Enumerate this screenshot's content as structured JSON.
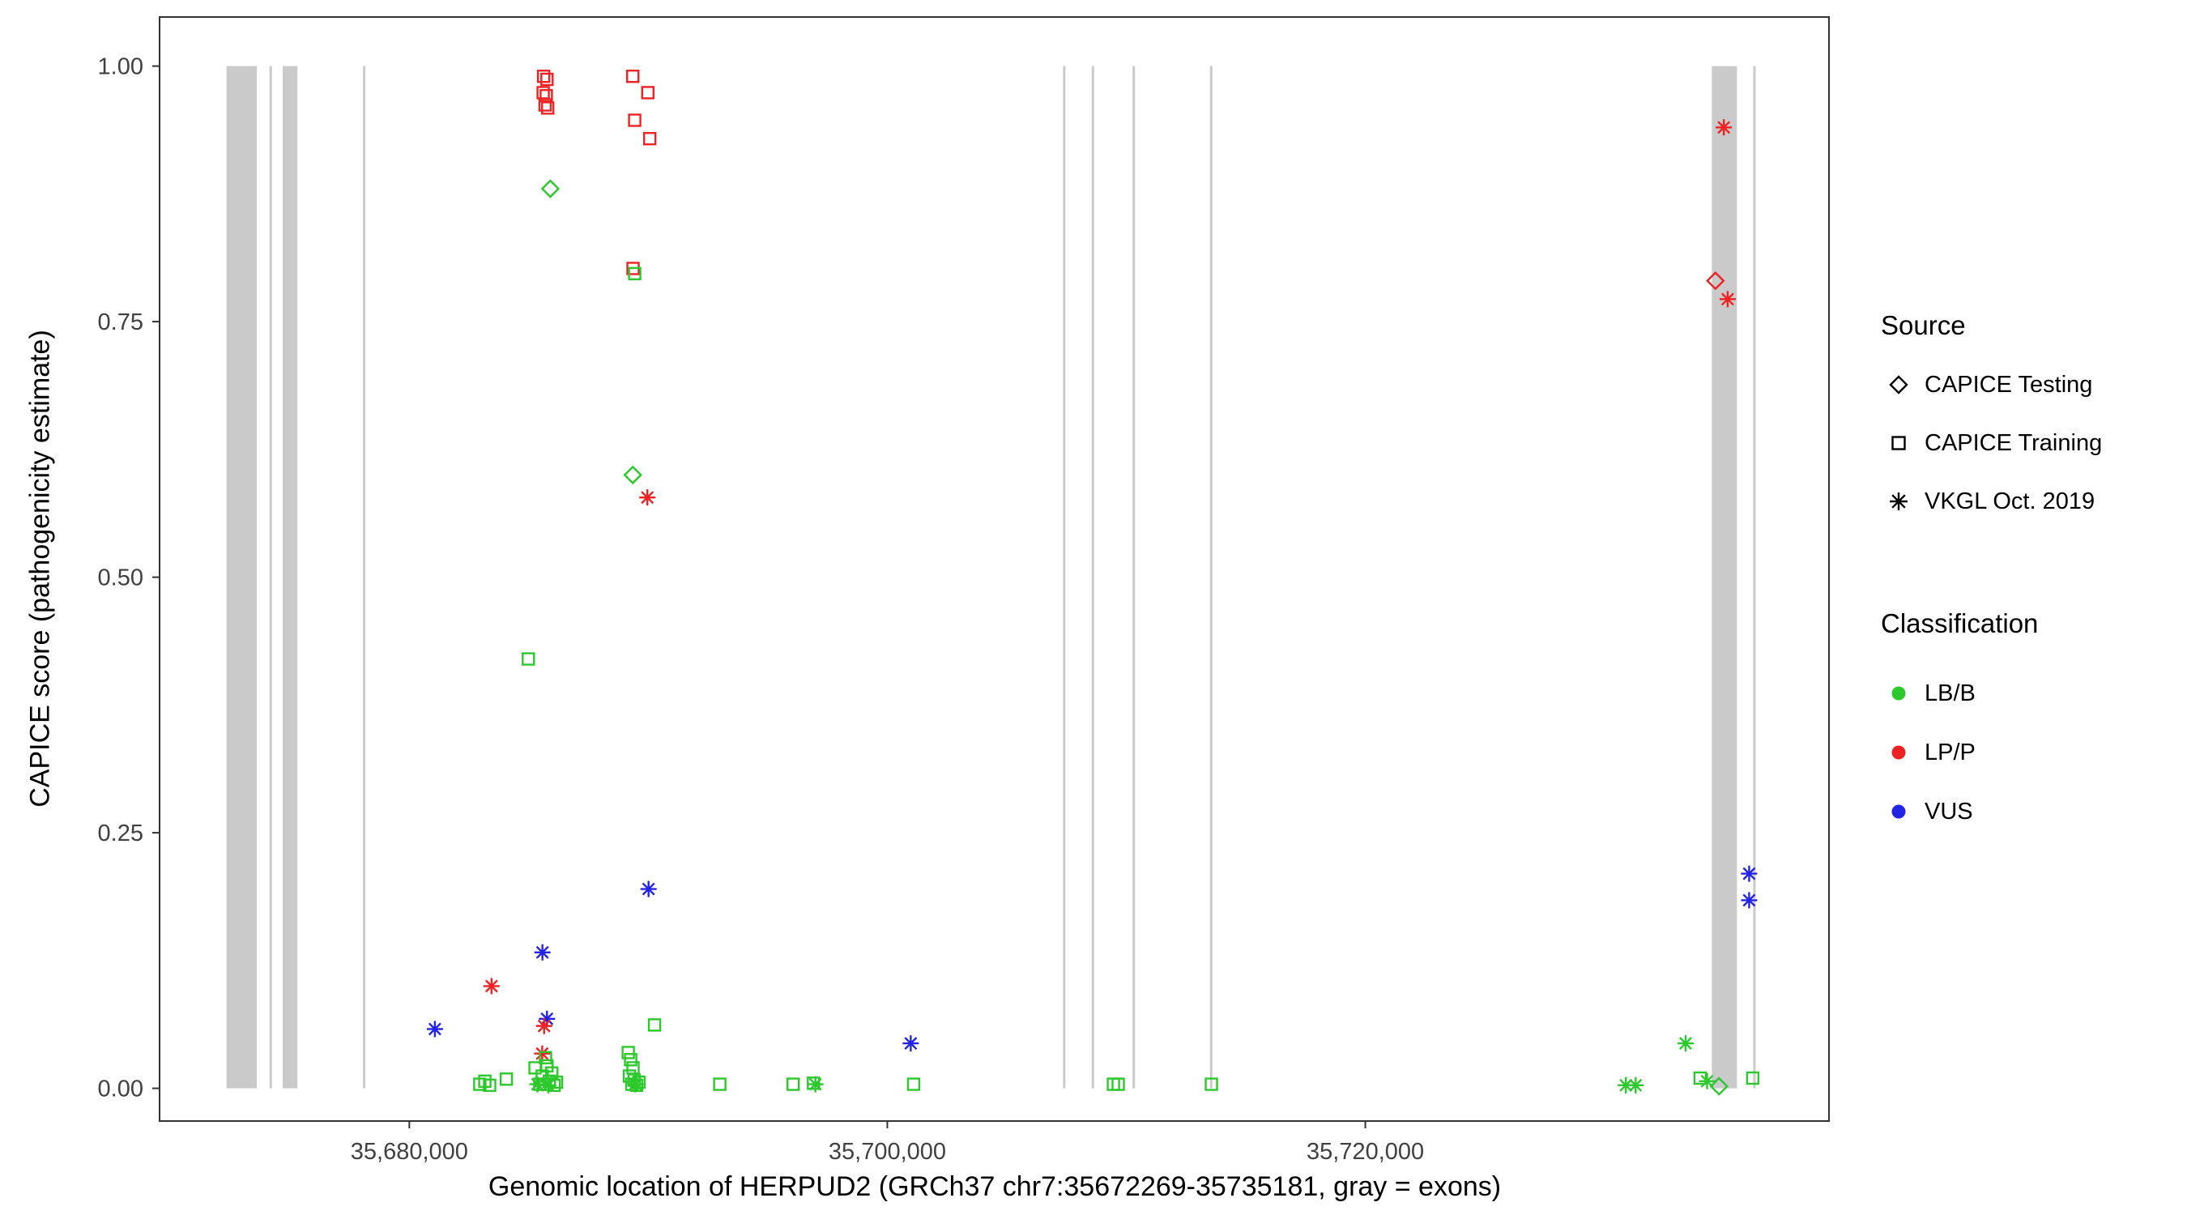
{
  "figure": {
    "y_axis": {
      "title": "CAPICE score (pathogenicity estimate)",
      "range": [
        -0.032,
        1.048
      ],
      "ticks": [
        {
          "value": 0.0,
          "label": "0.00"
        },
        {
          "value": 0.25,
          "label": "0.25"
        },
        {
          "value": 0.5,
          "label": "0.50"
        },
        {
          "value": 0.75,
          "label": "0.75"
        },
        {
          "value": 1.0,
          "label": "1.00"
        }
      ]
    },
    "x_axis": {
      "title": "Genomic location of HERPUD2 (GRCh37 chr7:35672269-35735181, gray = exons)",
      "range": [
        35669550,
        35739400
      ],
      "ticks": [
        {
          "value": 35680000,
          "label": "35,680,000"
        },
        {
          "value": 35700000,
          "label": "35,700,000"
        },
        {
          "value": 35720000,
          "label": "35,720,000"
        }
      ]
    },
    "legend_source": {
      "title": "Source",
      "items": [
        {
          "label": "CAPICE Testing",
          "shape": "diamond"
        },
        {
          "label": "CAPICE Training",
          "shape": "square"
        },
        {
          "label": "VKGL Oct. 2019",
          "shape": "asterisk"
        }
      ]
    },
    "legend_classification": {
      "title": "Classification",
      "items": [
        {
          "label": "LB/B",
          "class": "LB/B"
        },
        {
          "label": "LP/P",
          "class": "LP/P"
        },
        {
          "label": "VUS",
          "class": "VUS"
        }
      ]
    }
  },
  "chart_data": {
    "type": "scatter",
    "title": "",
    "xlabel": "Genomic location of HERPUD2 (GRCh37 chr7:35672269-35735181, gray = exons)",
    "ylabel": "CAPICE score (pathogenicity estimate)",
    "xlim": [
      35669550,
      35739400
    ],
    "ylim": [
      -0.032,
      1.048
    ],
    "grid": false,
    "legend_position": "right",
    "exon_color": "#cacaca",
    "axis_color": "#333333",
    "classification_colors": {
      "LB/B": "#2bc92b",
      "LP/P": "#ee2222",
      "VUS": "#2323e6"
    },
    "shape_by_source": {
      "CAPICE Testing": "diamond",
      "CAPICE Training": "square",
      "VKGL Oct. 2019": "asterisk"
    },
    "exons": [
      [
        35672350,
        35673620
      ],
      [
        35674150,
        35674240
      ],
      [
        35674700,
        35675320
      ],
      [
        35678060,
        35678160
      ],
      [
        35707350,
        35707440
      ],
      [
        35708550,
        35708640
      ],
      [
        35710260,
        35710350
      ],
      [
        35713500,
        35713590
      ],
      [
        35734500,
        35735550
      ],
      [
        35736230,
        35736330
      ]
    ],
    "points": [
      {
        "x": 35685620,
        "y": 0.99,
        "source": "CAPICE Training",
        "class": "LP/P"
      },
      {
        "x": 35685760,
        "y": 0.987,
        "source": "CAPICE Training",
        "class": "LP/P"
      },
      {
        "x": 35685600,
        "y": 0.974,
        "source": "CAPICE Training",
        "class": "LP/P"
      },
      {
        "x": 35685730,
        "y": 0.971,
        "source": "CAPICE Training",
        "class": "LP/P"
      },
      {
        "x": 35685680,
        "y": 0.962,
        "source": "CAPICE Training",
        "class": "LP/P"
      },
      {
        "x": 35685790,
        "y": 0.959,
        "source": "CAPICE Training",
        "class": "LP/P"
      },
      {
        "x": 35689350,
        "y": 0.99,
        "source": "CAPICE Training",
        "class": "LP/P"
      },
      {
        "x": 35689980,
        "y": 0.974,
        "source": "CAPICE Training",
        "class": "LP/P"
      },
      {
        "x": 35689430,
        "y": 0.947,
        "source": "CAPICE Training",
        "class": "LP/P"
      },
      {
        "x": 35690060,
        "y": 0.929,
        "source": "CAPICE Training",
        "class": "LP/P"
      },
      {
        "x": 35689360,
        "y": 0.802,
        "source": "CAPICE Training",
        "class": "LP/P"
      },
      {
        "x": 35689430,
        "y": 0.797,
        "source": "CAPICE Training",
        "class": "LB/B"
      },
      {
        "x": 35685900,
        "y": 0.88,
        "source": "CAPICE Testing",
        "class": "LB/B"
      },
      {
        "x": 35689350,
        "y": 0.6,
        "source": "CAPICE Testing",
        "class": "LB/B"
      },
      {
        "x": 35689960,
        "y": 0.578,
        "source": "VKGL Oct. 2019",
        "class": "LP/P"
      },
      {
        "x": 35684980,
        "y": 0.42,
        "source": "CAPICE Training",
        "class": "LB/B"
      },
      {
        "x": 35690010,
        "y": 0.195,
        "source": "VKGL Oct. 2019",
        "class": "VUS"
      },
      {
        "x": 35685570,
        "y": 0.133,
        "source": "VKGL Oct. 2019",
        "class": "VUS"
      },
      {
        "x": 35683440,
        "y": 0.1,
        "source": "VKGL Oct. 2019",
        "class": "LP/P"
      },
      {
        "x": 35681070,
        "y": 0.058,
        "source": "VKGL Oct. 2019",
        "class": "VUS"
      },
      {
        "x": 35685760,
        "y": 0.068,
        "source": "VKGL Oct. 2019",
        "class": "VUS"
      },
      {
        "x": 35685640,
        "y": 0.061,
        "source": "VKGL Oct. 2019",
        "class": "LP/P"
      },
      {
        "x": 35685560,
        "y": 0.034,
        "source": "VKGL Oct. 2019",
        "class": "LP/P"
      },
      {
        "x": 35685700,
        "y": 0.03,
        "source": "CAPICE Training",
        "class": "LB/B"
      },
      {
        "x": 35682950,
        "y": 0.004,
        "source": "CAPICE Training",
        "class": "LB/B"
      },
      {
        "x": 35683160,
        "y": 0.007,
        "source": "CAPICE Training",
        "class": "LB/B"
      },
      {
        "x": 35683360,
        "y": 0.003,
        "source": "CAPICE Training",
        "class": "LB/B"
      },
      {
        "x": 35684060,
        "y": 0.009,
        "source": "CAPICE Training",
        "class": "LB/B"
      },
      {
        "x": 35685260,
        "y": 0.02,
        "source": "CAPICE Training",
        "class": "LB/B"
      },
      {
        "x": 35685460,
        "y": 0.004,
        "source": "CAPICE Training",
        "class": "LB/B"
      },
      {
        "x": 35685560,
        "y": 0.012,
        "source": "CAPICE Training",
        "class": "LB/B"
      },
      {
        "x": 35685660,
        "y": 0.004,
        "source": "CAPICE Training",
        "class": "LB/B"
      },
      {
        "x": 35685760,
        "y": 0.022,
        "source": "CAPICE Training",
        "class": "LB/B"
      },
      {
        "x": 35685860,
        "y": 0.007,
        "source": "CAPICE Training",
        "class": "LB/B"
      },
      {
        "x": 35685960,
        "y": 0.015,
        "source": "CAPICE Training",
        "class": "LB/B"
      },
      {
        "x": 35686060,
        "y": 0.003,
        "source": "CAPICE Training",
        "class": "LB/B"
      },
      {
        "x": 35686160,
        "y": 0.006,
        "source": "CAPICE Training",
        "class": "LB/B"
      },
      {
        "x": 35685360,
        "y": 0.004,
        "source": "VKGL Oct. 2019",
        "class": "LB/B"
      },
      {
        "x": 35685810,
        "y": 0.003,
        "source": "VKGL Oct. 2019",
        "class": "LB/B"
      },
      {
        "x": 35690260,
        "y": 0.062,
        "source": "CAPICE Training",
        "class": "LB/B"
      },
      {
        "x": 35689160,
        "y": 0.035,
        "source": "CAPICE Training",
        "class": "LB/B"
      },
      {
        "x": 35689260,
        "y": 0.028,
        "source": "CAPICE Training",
        "class": "LB/B"
      },
      {
        "x": 35689360,
        "y": 0.02,
        "source": "CAPICE Training",
        "class": "LB/B"
      },
      {
        "x": 35689210,
        "y": 0.012,
        "source": "CAPICE Training",
        "class": "LB/B"
      },
      {
        "x": 35689410,
        "y": 0.008,
        "source": "CAPICE Training",
        "class": "LB/B"
      },
      {
        "x": 35689310,
        "y": 0.004,
        "source": "CAPICE Training",
        "class": "LB/B"
      },
      {
        "x": 35689510,
        "y": 0.003,
        "source": "CAPICE Training",
        "class": "LB/B"
      },
      {
        "x": 35689610,
        "y": 0.006,
        "source": "CAPICE Training",
        "class": "LB/B"
      },
      {
        "x": 35689460,
        "y": 0.004,
        "source": "VKGL Oct. 2019",
        "class": "LB/B"
      },
      {
        "x": 35692990,
        "y": 0.004,
        "source": "CAPICE Training",
        "class": "LB/B"
      },
      {
        "x": 35696060,
        "y": 0.004,
        "source": "CAPICE Training",
        "class": "LB/B"
      },
      {
        "x": 35696910,
        "y": 0.005,
        "source": "CAPICE Training",
        "class": "LB/B"
      },
      {
        "x": 35696990,
        "y": 0.004,
        "source": "VKGL Oct. 2019",
        "class": "LB/B"
      },
      {
        "x": 35700980,
        "y": 0.044,
        "source": "VKGL Oct. 2019",
        "class": "VUS"
      },
      {
        "x": 35701100,
        "y": 0.004,
        "source": "CAPICE Training",
        "class": "LB/B"
      },
      {
        "x": 35709460,
        "y": 0.004,
        "source": "CAPICE Training",
        "class": "LB/B"
      },
      {
        "x": 35709660,
        "y": 0.004,
        "source": "CAPICE Training",
        "class": "LB/B"
      },
      {
        "x": 35713560,
        "y": 0.004,
        "source": "CAPICE Training",
        "class": "LB/B"
      },
      {
        "x": 35735000,
        "y": 0.94,
        "source": "VKGL Oct. 2019",
        "class": "LP/P"
      },
      {
        "x": 35734650,
        "y": 0.79,
        "source": "CAPICE Testing",
        "class": "LP/P"
      },
      {
        "x": 35735160,
        "y": 0.772,
        "source": "VKGL Oct. 2019",
        "class": "LP/P"
      },
      {
        "x": 35736060,
        "y": 0.21,
        "source": "VKGL Oct. 2019",
        "class": "VUS"
      },
      {
        "x": 35736060,
        "y": 0.184,
        "source": "VKGL Oct. 2019",
        "class": "VUS"
      },
      {
        "x": 35733400,
        "y": 0.044,
        "source": "VKGL Oct. 2019",
        "class": "LB/B"
      },
      {
        "x": 35730900,
        "y": 0.003,
        "source": "VKGL Oct. 2019",
        "class": "LB/B"
      },
      {
        "x": 35731310,
        "y": 0.003,
        "source": "VKGL Oct. 2019",
        "class": "LB/B"
      },
      {
        "x": 35734010,
        "y": 0.01,
        "source": "CAPICE Training",
        "class": "LB/B"
      },
      {
        "x": 35734300,
        "y": 0.007,
        "source": "VKGL Oct. 2019",
        "class": "LB/B"
      },
      {
        "x": 35734800,
        "y": 0.002,
        "source": "CAPICE Testing",
        "class": "LB/B"
      },
      {
        "x": 35736210,
        "y": 0.01,
        "source": "CAPICE Training",
        "class": "LB/B"
      }
    ]
  }
}
